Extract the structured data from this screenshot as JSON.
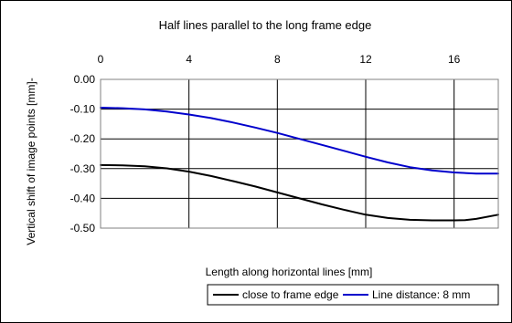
{
  "chart_data": {
    "type": "line",
    "title": "Half lines parallel to the long frame edge",
    "xlabel": "Length along horizontal lines [mm]",
    "ylabel": "Vertical shift of image points [mm]-",
    "xlim": [
      0,
      18
    ],
    "ylim": [
      -0.5,
      0.0
    ],
    "x_ticks": [
      "0",
      "4",
      "8",
      "12",
      "16"
    ],
    "x_tick_values": [
      0,
      4,
      8,
      12,
      16
    ],
    "y_ticks": [
      "0.00",
      "-0.10",
      "-0.20",
      "-0.30",
      "-0.40",
      "-0.50"
    ],
    "y_tick_values": [
      0.0,
      -0.1,
      -0.2,
      -0.3,
      -0.4,
      -0.5
    ],
    "x_axis_position": "top",
    "grid": {
      "vertical": true,
      "horizontal": true
    },
    "legend_position": "bottom",
    "series": [
      {
        "name": "close to frame edge",
        "color": "#000000",
        "x": [
          0,
          1,
          2,
          3,
          4,
          5,
          6,
          7,
          8,
          9,
          10,
          11,
          12,
          13,
          14,
          15,
          16,
          16.5,
          17,
          18
        ],
        "values": [
          -0.288,
          -0.289,
          -0.292,
          -0.299,
          -0.31,
          -0.325,
          -0.342,
          -0.36,
          -0.38,
          -0.4,
          -0.42,
          -0.438,
          -0.455,
          -0.466,
          -0.472,
          -0.474,
          -0.474,
          -0.473,
          -0.469,
          -0.455
        ]
      },
      {
        "name": "Line distance: 8 mm",
        "color": "#0000cc",
        "x": [
          0,
          1,
          2,
          3,
          4,
          5,
          6,
          7,
          8,
          9,
          10,
          11,
          12,
          13,
          14,
          15,
          16,
          17,
          18
        ],
        "values": [
          -0.095,
          -0.097,
          -0.101,
          -0.108,
          -0.118,
          -0.13,
          -0.145,
          -0.162,
          -0.18,
          -0.2,
          -0.22,
          -0.24,
          -0.26,
          -0.279,
          -0.295,
          -0.306,
          -0.313,
          -0.317,
          -0.317
        ]
      }
    ]
  }
}
